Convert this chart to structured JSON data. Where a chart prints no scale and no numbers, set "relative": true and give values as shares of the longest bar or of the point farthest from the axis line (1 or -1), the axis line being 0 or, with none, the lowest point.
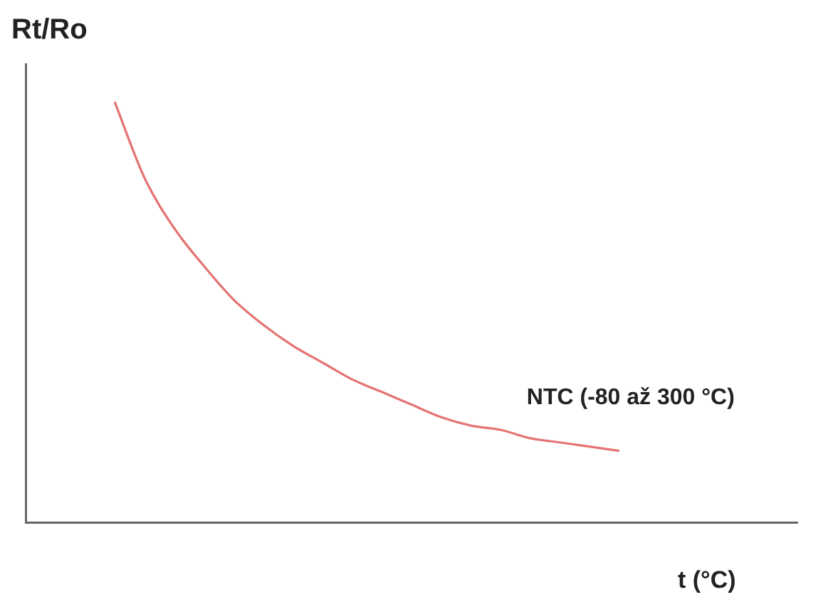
{
  "chart_data": {
    "type": "line",
    "relative": true,
    "ylabel": "Rt/Ro",
    "xlabel": "t (°C)",
    "tick_labels": false,
    "grid": false,
    "legend": false,
    "marker": "none",
    "line_style": "solid",
    "categories": [
      null,
      null,
      null,
      null,
      null,
      null,
      null,
      null,
      null,
      null,
      null,
      null,
      null,
      null,
      null,
      null,
      null,
      null,
      null,
      null,
      null,
      null,
      null,
      null,
      null,
      null,
      null
    ],
    "series": [
      {
        "name": "NTC (-80 až 300 °C)",
        "color": "#e57373",
        "values": [
          null,
          null,
          null,
          1,
          0.82,
          0.7,
          0.61,
          0.53,
          0.47,
          0.42,
          0.38,
          0.34,
          0.31,
          0.28,
          0.25,
          0.23,
          0.22,
          0.2,
          0.19,
          0.18,
          0.17,
          null,
          null,
          null,
          null,
          null,
          null
        ]
      }
    ]
  }
}
